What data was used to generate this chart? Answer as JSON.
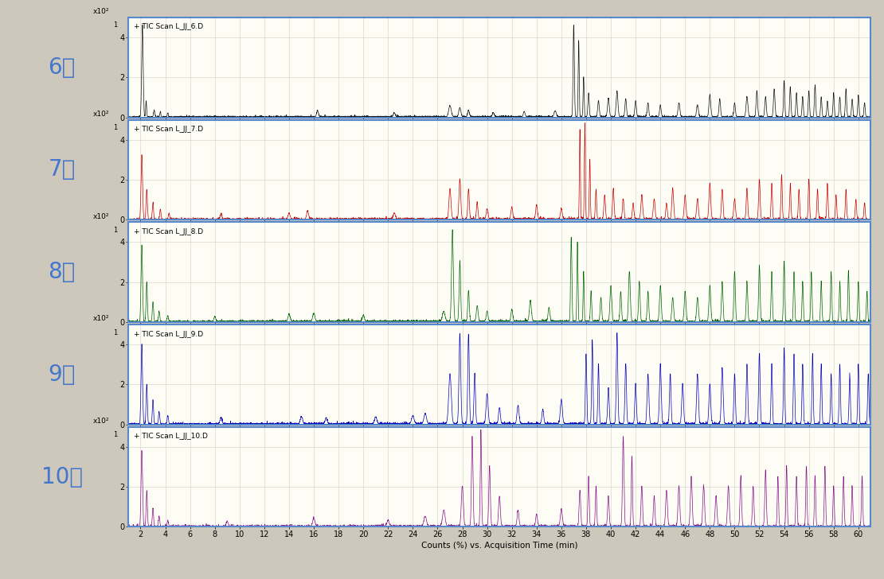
{
  "months": [
    "6월",
    "7월",
    "8월",
    "9월",
    "10월"
  ],
  "labels": [
    "+ TIC Scan L_JJ_6.D",
    "+ TIC Scan L_JJ_7.D",
    "+ TIC Scan L_JJ_8.D",
    "+ TIC Scan L_JJ_9.D",
    "+ TIC Scan L_JJ_10.D"
  ],
  "colors": [
    "#111111",
    "#cc0000",
    "#006600",
    "#0000bb",
    "#881188"
  ],
  "month_color": "#4477cc",
  "x_min": 1,
  "x_max": 61,
  "y_min": 0,
  "y_max": 5.0,
  "y_ticks": [
    0,
    2,
    4
  ],
  "x_ticks": [
    2,
    4,
    6,
    8,
    10,
    12,
    14,
    16,
    18,
    20,
    22,
    24,
    26,
    28,
    30,
    32,
    34,
    36,
    38,
    40,
    42,
    44,
    46,
    48,
    50,
    52,
    54,
    56,
    58,
    60
  ],
  "xlabel": "Counts (%) vs. Acquisition Time (min)",
  "ylabel": "x10²",
  "panel_bg": "#fdfdf5",
  "outer_bg": "#cec8bc",
  "label_area_bg": "#cec8bc",
  "border_color": "#5588cc",
  "grid_color": "#d8d8cc"
}
